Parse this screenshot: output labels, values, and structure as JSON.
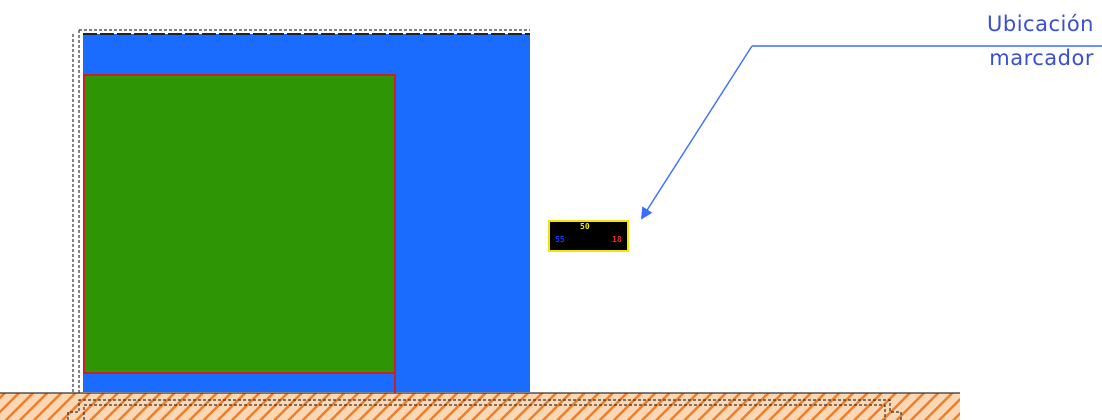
{
  "annotation": {
    "line1": "Ubicación",
    "line2": "marcador"
  },
  "scoreboard": {
    "top_value": "50",
    "left_value": "55",
    "right_value": "18"
  },
  "colors": {
    "wall": "#1a6cff",
    "field": "#2e9605",
    "field_border": "#cc1f1f",
    "ground_hatch": "#f07d2a",
    "annotation": "#3a4fd0",
    "scoreboard_border": "#f2e600",
    "scoreboard_bg": "#000000"
  }
}
